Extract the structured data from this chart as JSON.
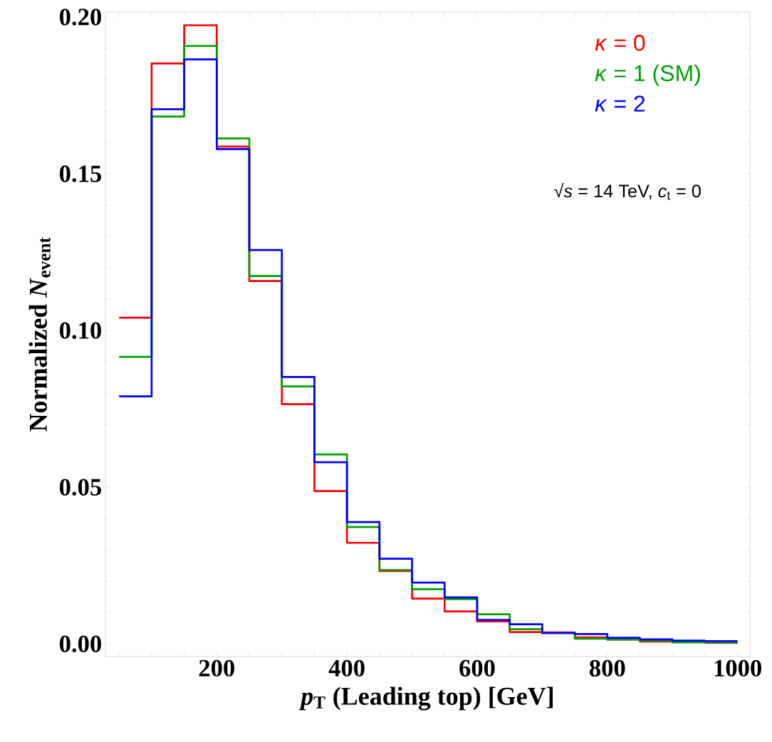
{
  "chart_data": {
    "type": "histogram",
    "xlabel": "*p*$_{T}$ (Leading top) [GeV]",
    "ylabel": "Normalized *N*$_{event}$",
    "bins": [
      50,
      100,
      150,
      200,
      250,
      300,
      350,
      400,
      450,
      500,
      550,
      600,
      650,
      700,
      750,
      800,
      850,
      900,
      950,
      1000
    ],
    "series": [
      {
        "name": "*κ* = 0",
        "color": "#ff0000",
        "values": [
          0.1041,
          0.1852,
          0.1974,
          0.1587,
          0.1158,
          0.0765,
          0.0488,
          0.0323,
          0.0233,
          0.0145,
          0.0104,
          0.0072,
          0.0038,
          0.0037,
          0.0021,
          0.0014,
          0.0008,
          0.0007,
          0.0004
        ]
      },
      {
        "name": "*κ* = 1 (SM)",
        "color": "#00a000",
        "values": [
          0.0916,
          0.1683,
          0.1908,
          0.1613,
          0.1174,
          0.0822,
          0.0605,
          0.0373,
          0.0236,
          0.0175,
          0.0143,
          0.0095,
          0.0047,
          0.0035,
          0.0017,
          0.0014,
          0.0011,
          0.0005,
          0.0005
        ]
      },
      {
        "name": "*κ* = 2",
        "color": "#0000ff",
        "values": [
          0.079,
          0.1706,
          0.1865,
          0.1579,
          0.1257,
          0.0852,
          0.058,
          0.0389,
          0.0272,
          0.0196,
          0.0149,
          0.0077,
          0.0063,
          0.0035,
          0.0032,
          0.002,
          0.0015,
          0.0011,
          0.0009
        ]
      }
    ],
    "annotations": [
      "√*s* = 14 TeV, *c*$_{t}$ = 0"
    ],
    "legend": "top right",
    "line_style": "solid",
    "xlim": [
      29,
      1019
    ],
    "ylim": [
      -0.004,
      0.2016
    ],
    "xticks": [
      {
        "value": 50,
        "label": null
      },
      {
        "value": 100,
        "label": null
      },
      {
        "value": 150,
        "label": null
      },
      200,
      {
        "value": 250,
        "label": null
      },
      {
        "value": 300,
        "label": null
      },
      {
        "value": 350,
        "label": null
      },
      400,
      {
        "value": 450,
        "label": null
      },
      {
        "value": 500,
        "label": null
      },
      {
        "value": 550,
        "label": null
      },
      600,
      {
        "value": 650,
        "label": null
      },
      {
        "value": 700,
        "label": null
      },
      {
        "value": 750,
        "label": null
      },
      800,
      {
        "value": 850,
        "label": null
      },
      {
        "value": 900,
        "label": null
      },
      {
        "value": 950,
        "label": null
      },
      1000
    ],
    "yticks": [
      {
        "value": 0,
        "label": "0.00"
      },
      {
        "value": 0.01,
        "label": null
      },
      {
        "value": 0.02,
        "label": null
      },
      {
        "value": 0.03,
        "label": null
      },
      {
        "value": 0.04,
        "label": null
      },
      {
        "value": 0.05,
        "label": "0.05"
      },
      {
        "value": 0.06,
        "label": null
      },
      {
        "value": 0.07,
        "label": null
      },
      {
        "value": 0.08,
        "label": null
      },
      {
        "value": 0.09,
        "label": null
      },
      {
        "value": 0.1,
        "label": "0.10"
      },
      {
        "value": 0.11,
        "label": null
      },
      {
        "value": 0.12,
        "label": null
      },
      {
        "value": 0.13,
        "label": null
      },
      {
        "value": 0.14,
        "label": null
      },
      {
        "value": 0.15,
        "label": "0.15"
      },
      {
        "value": 0.16,
        "label": null
      },
      {
        "value": 0.17,
        "label": null
      },
      {
        "value": 0.18,
        "label": null
      },
      {
        "value": 0.19,
        "label": null
      },
      {
        "value": 0.2,
        "label": "0.20"
      }
    ]
  }
}
